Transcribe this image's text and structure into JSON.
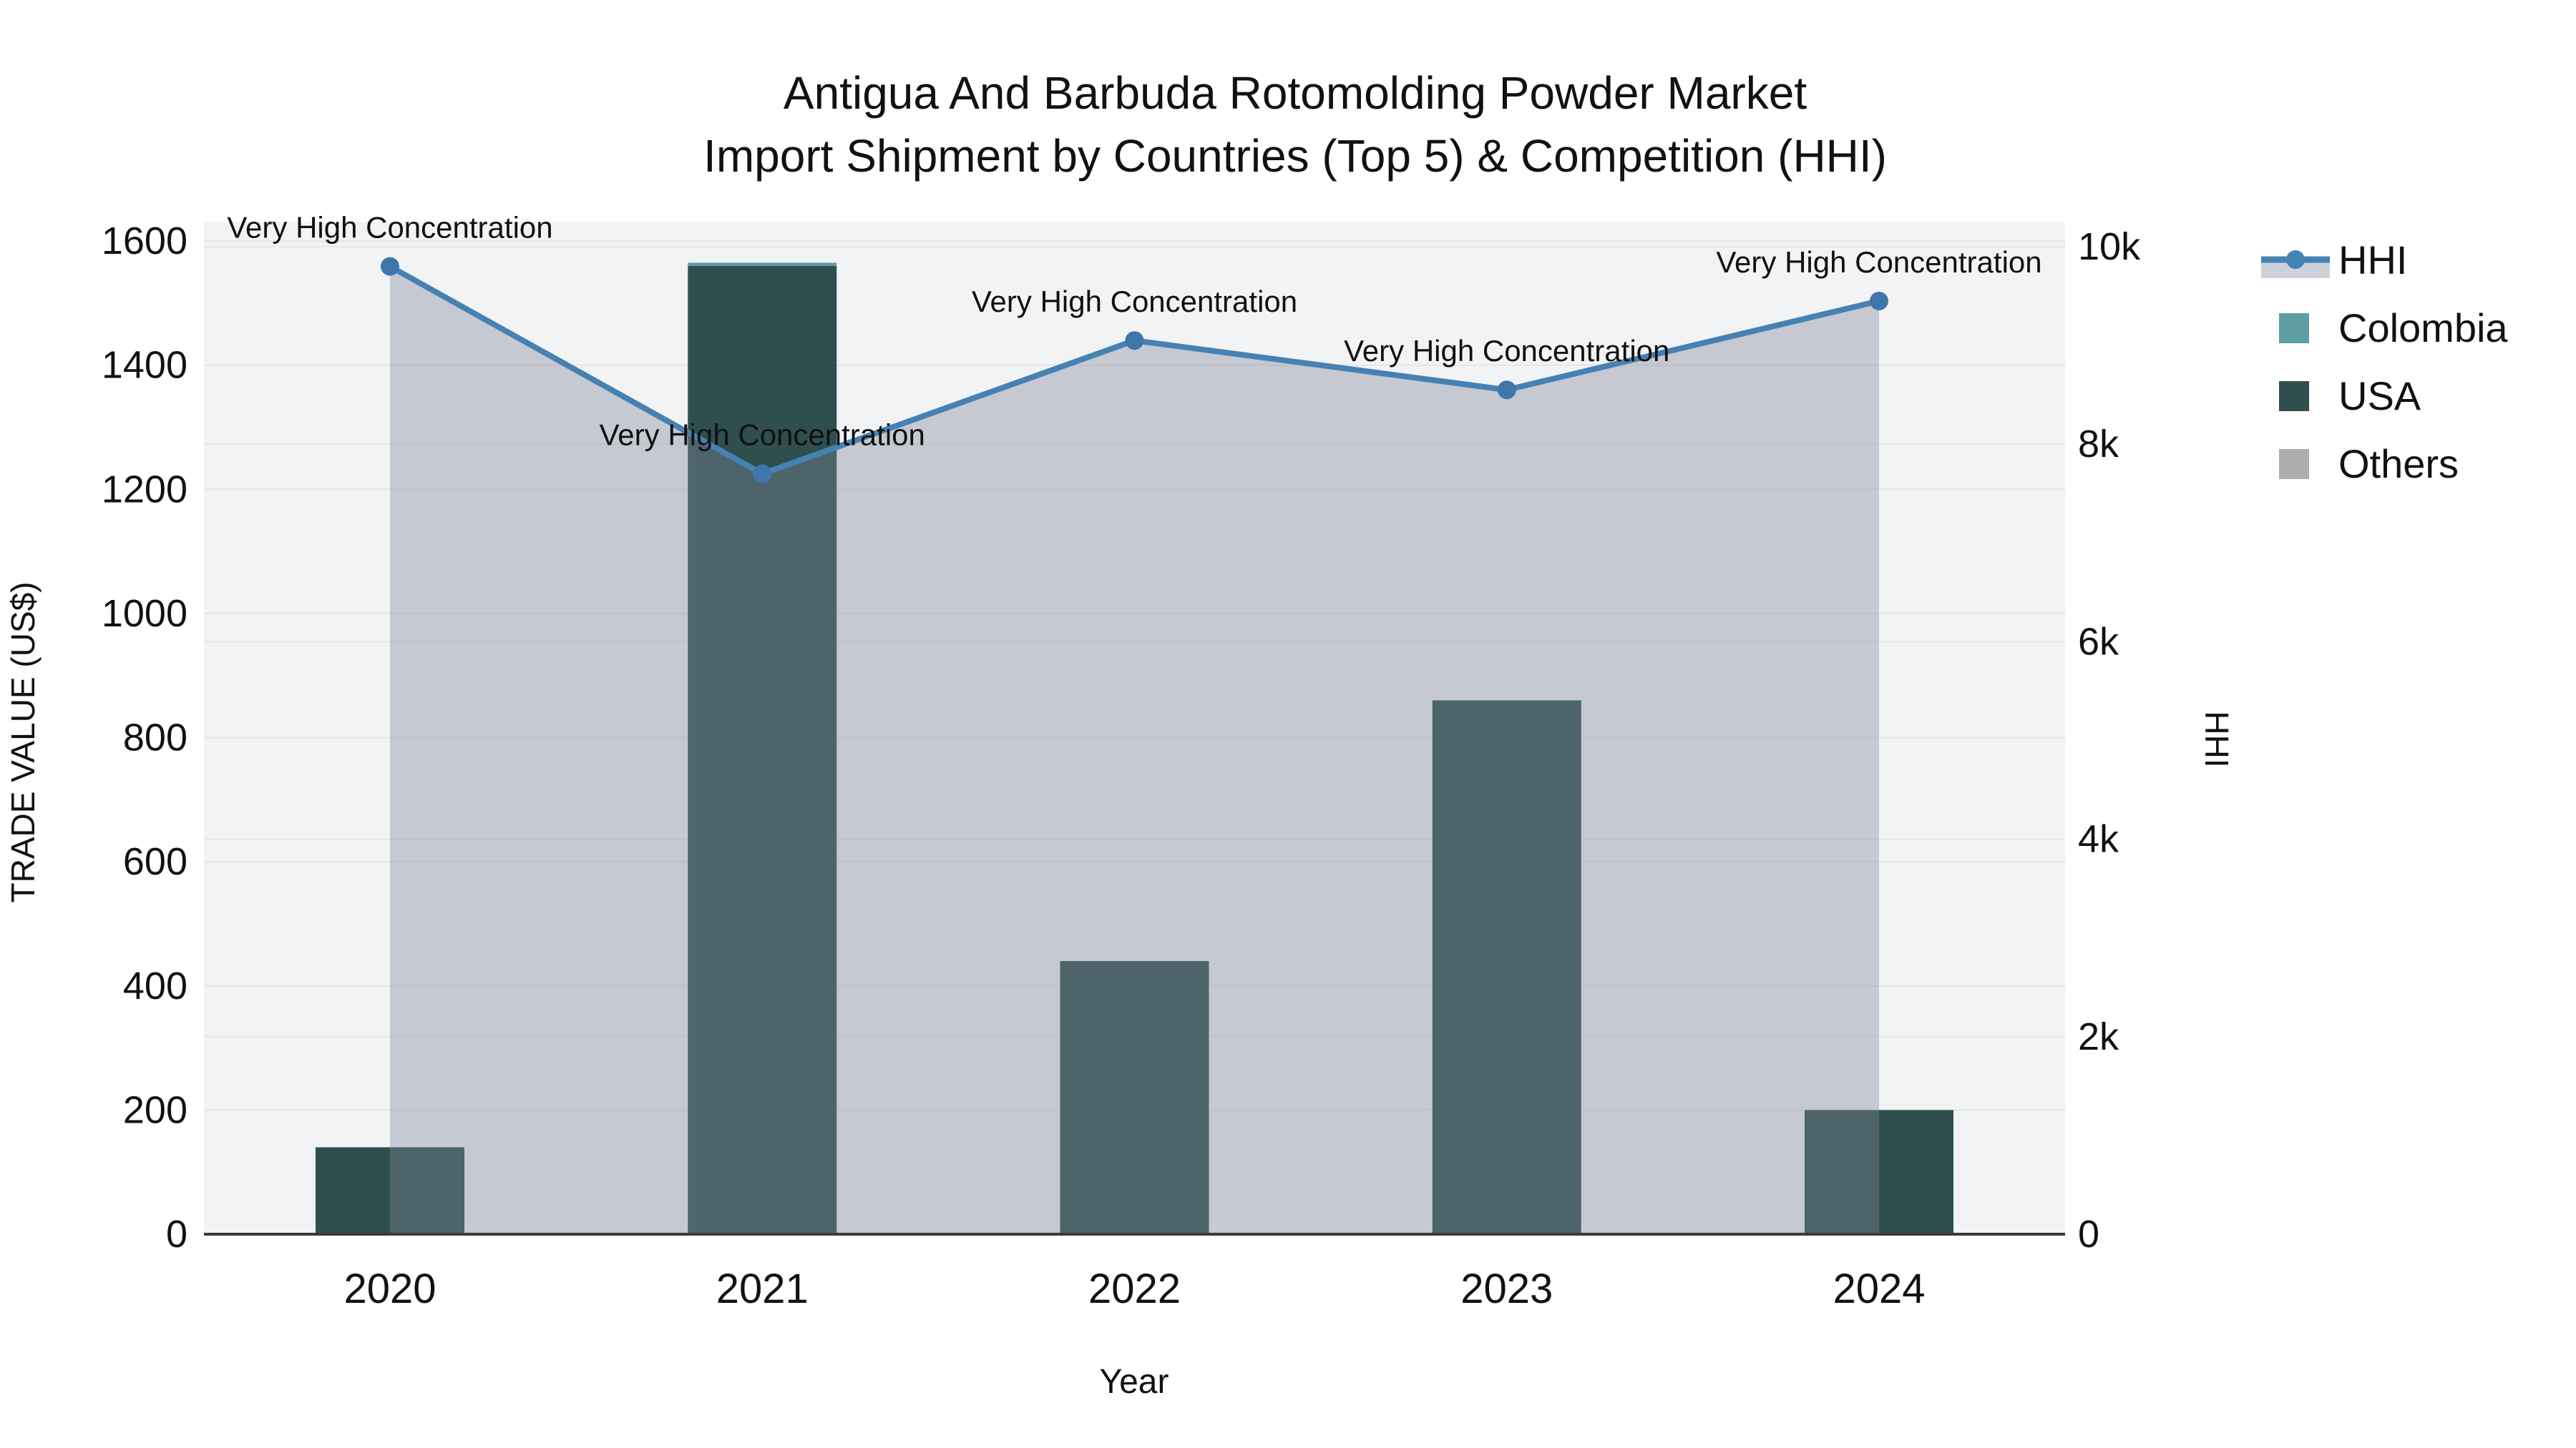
{
  "title": {
    "line1": "Antigua And Barbuda Rotomolding Powder Market",
    "line2": "Import Shipment by Countries (Top 5) & Competition (HHI)"
  },
  "axes": {
    "x": {
      "title": "Year",
      "tick_labels": [
        "2020",
        "2021",
        "2022",
        "2023",
        "2024"
      ]
    },
    "y_left": {
      "title": "TRADE VALUE (US$)",
      "tick_values": [
        0,
        200,
        400,
        600,
        800,
        1000,
        1200,
        1400,
        1600
      ],
      "tick_labels": [
        "0",
        "200",
        "400",
        "600",
        "800",
        "1000",
        "1200",
        "1400",
        "1600"
      ],
      "range": [
        0,
        1600
      ]
    },
    "y_right": {
      "title": "HHI",
      "tick_values": [
        0,
        2000,
        4000,
        6000,
        8000,
        10000
      ],
      "tick_labels": [
        "0",
        "2k",
        "4k",
        "6k",
        "8k",
        "10k"
      ],
      "range": [
        0,
        10000
      ]
    }
  },
  "legend": {
    "items": [
      {
        "label": "HHI",
        "type": "line",
        "color": "#4681B4"
      },
      {
        "label": "Colombia",
        "type": "square",
        "color": "#5F9EA0"
      },
      {
        "label": "USA",
        "type": "square",
        "color": "#2F4F4F"
      },
      {
        "label": "Others",
        "type": "square",
        "color": "#ADADAD"
      }
    ]
  },
  "annotations": [
    {
      "x": "2020",
      "text": "Very High Concentration"
    },
    {
      "x": "2021",
      "text": "Very High Concentration"
    },
    {
      "x": "2022",
      "text": "Very High Concentration"
    },
    {
      "x": "2023",
      "text": "Very High Concentration"
    },
    {
      "x": "2024",
      "text": "Very High Concentration"
    }
  ],
  "colors": {
    "plot_background": "#f2f3f4",
    "gridline": "#e5e7e9",
    "axis_line": "#3a3a3a",
    "hhi_line": "#4681B4",
    "hhi_marker": "#3E76AC",
    "hhi_area_fill": "rgba(125,135,152,0.38)",
    "colombia": "#5F9EA0",
    "usa": "#2F4F4F",
    "others": "#ADADAD",
    "text": "#111111"
  },
  "chart_data": {
    "type": "bar",
    "subtype": "stacked-bar-with-line",
    "title": "Antigua And Barbuda Rotomolding Powder Market Import Shipment by Countries (Top 5) & Competition (HHI)",
    "categories": [
      2020,
      2021,
      2022,
      2023,
      2024
    ],
    "xlabel": "Year",
    "ylabel_left": "TRADE VALUE (US$)",
    "ylabel_right": "HHI",
    "ylim_left": [
      0,
      1600
    ],
    "ylim_right": [
      0,
      10000
    ],
    "grid": true,
    "legend_position": "right",
    "barmode": "stack",
    "stack_order": [
      "USA",
      "Colombia",
      "Others"
    ],
    "series": [
      {
        "name": "Colombia",
        "type": "bar",
        "axis": "left",
        "color": "#5F9EA0",
        "values": [
          0,
          5,
          0,
          0,
          0
        ]
      },
      {
        "name": "USA",
        "type": "bar",
        "axis": "left",
        "color": "#2F4F4F",
        "values": [
          140,
          1560,
          440,
          860,
          200
        ]
      },
      {
        "name": "Others",
        "type": "bar",
        "axis": "left",
        "color": "#ADADAD",
        "values": [
          0,
          0,
          0,
          0,
          0
        ]
      },
      {
        "name": "HHI",
        "type": "line",
        "axis": "right",
        "fill": "tozeroy",
        "color": "#4681B4",
        "values": [
          9800,
          7700,
          9050,
          8550,
          9450
        ]
      }
    ],
    "point_annotations": [
      "Very High Concentration",
      "Very High Concentration",
      "Very High Concentration",
      "Very High Concentration",
      "Very High Concentration"
    ]
  }
}
